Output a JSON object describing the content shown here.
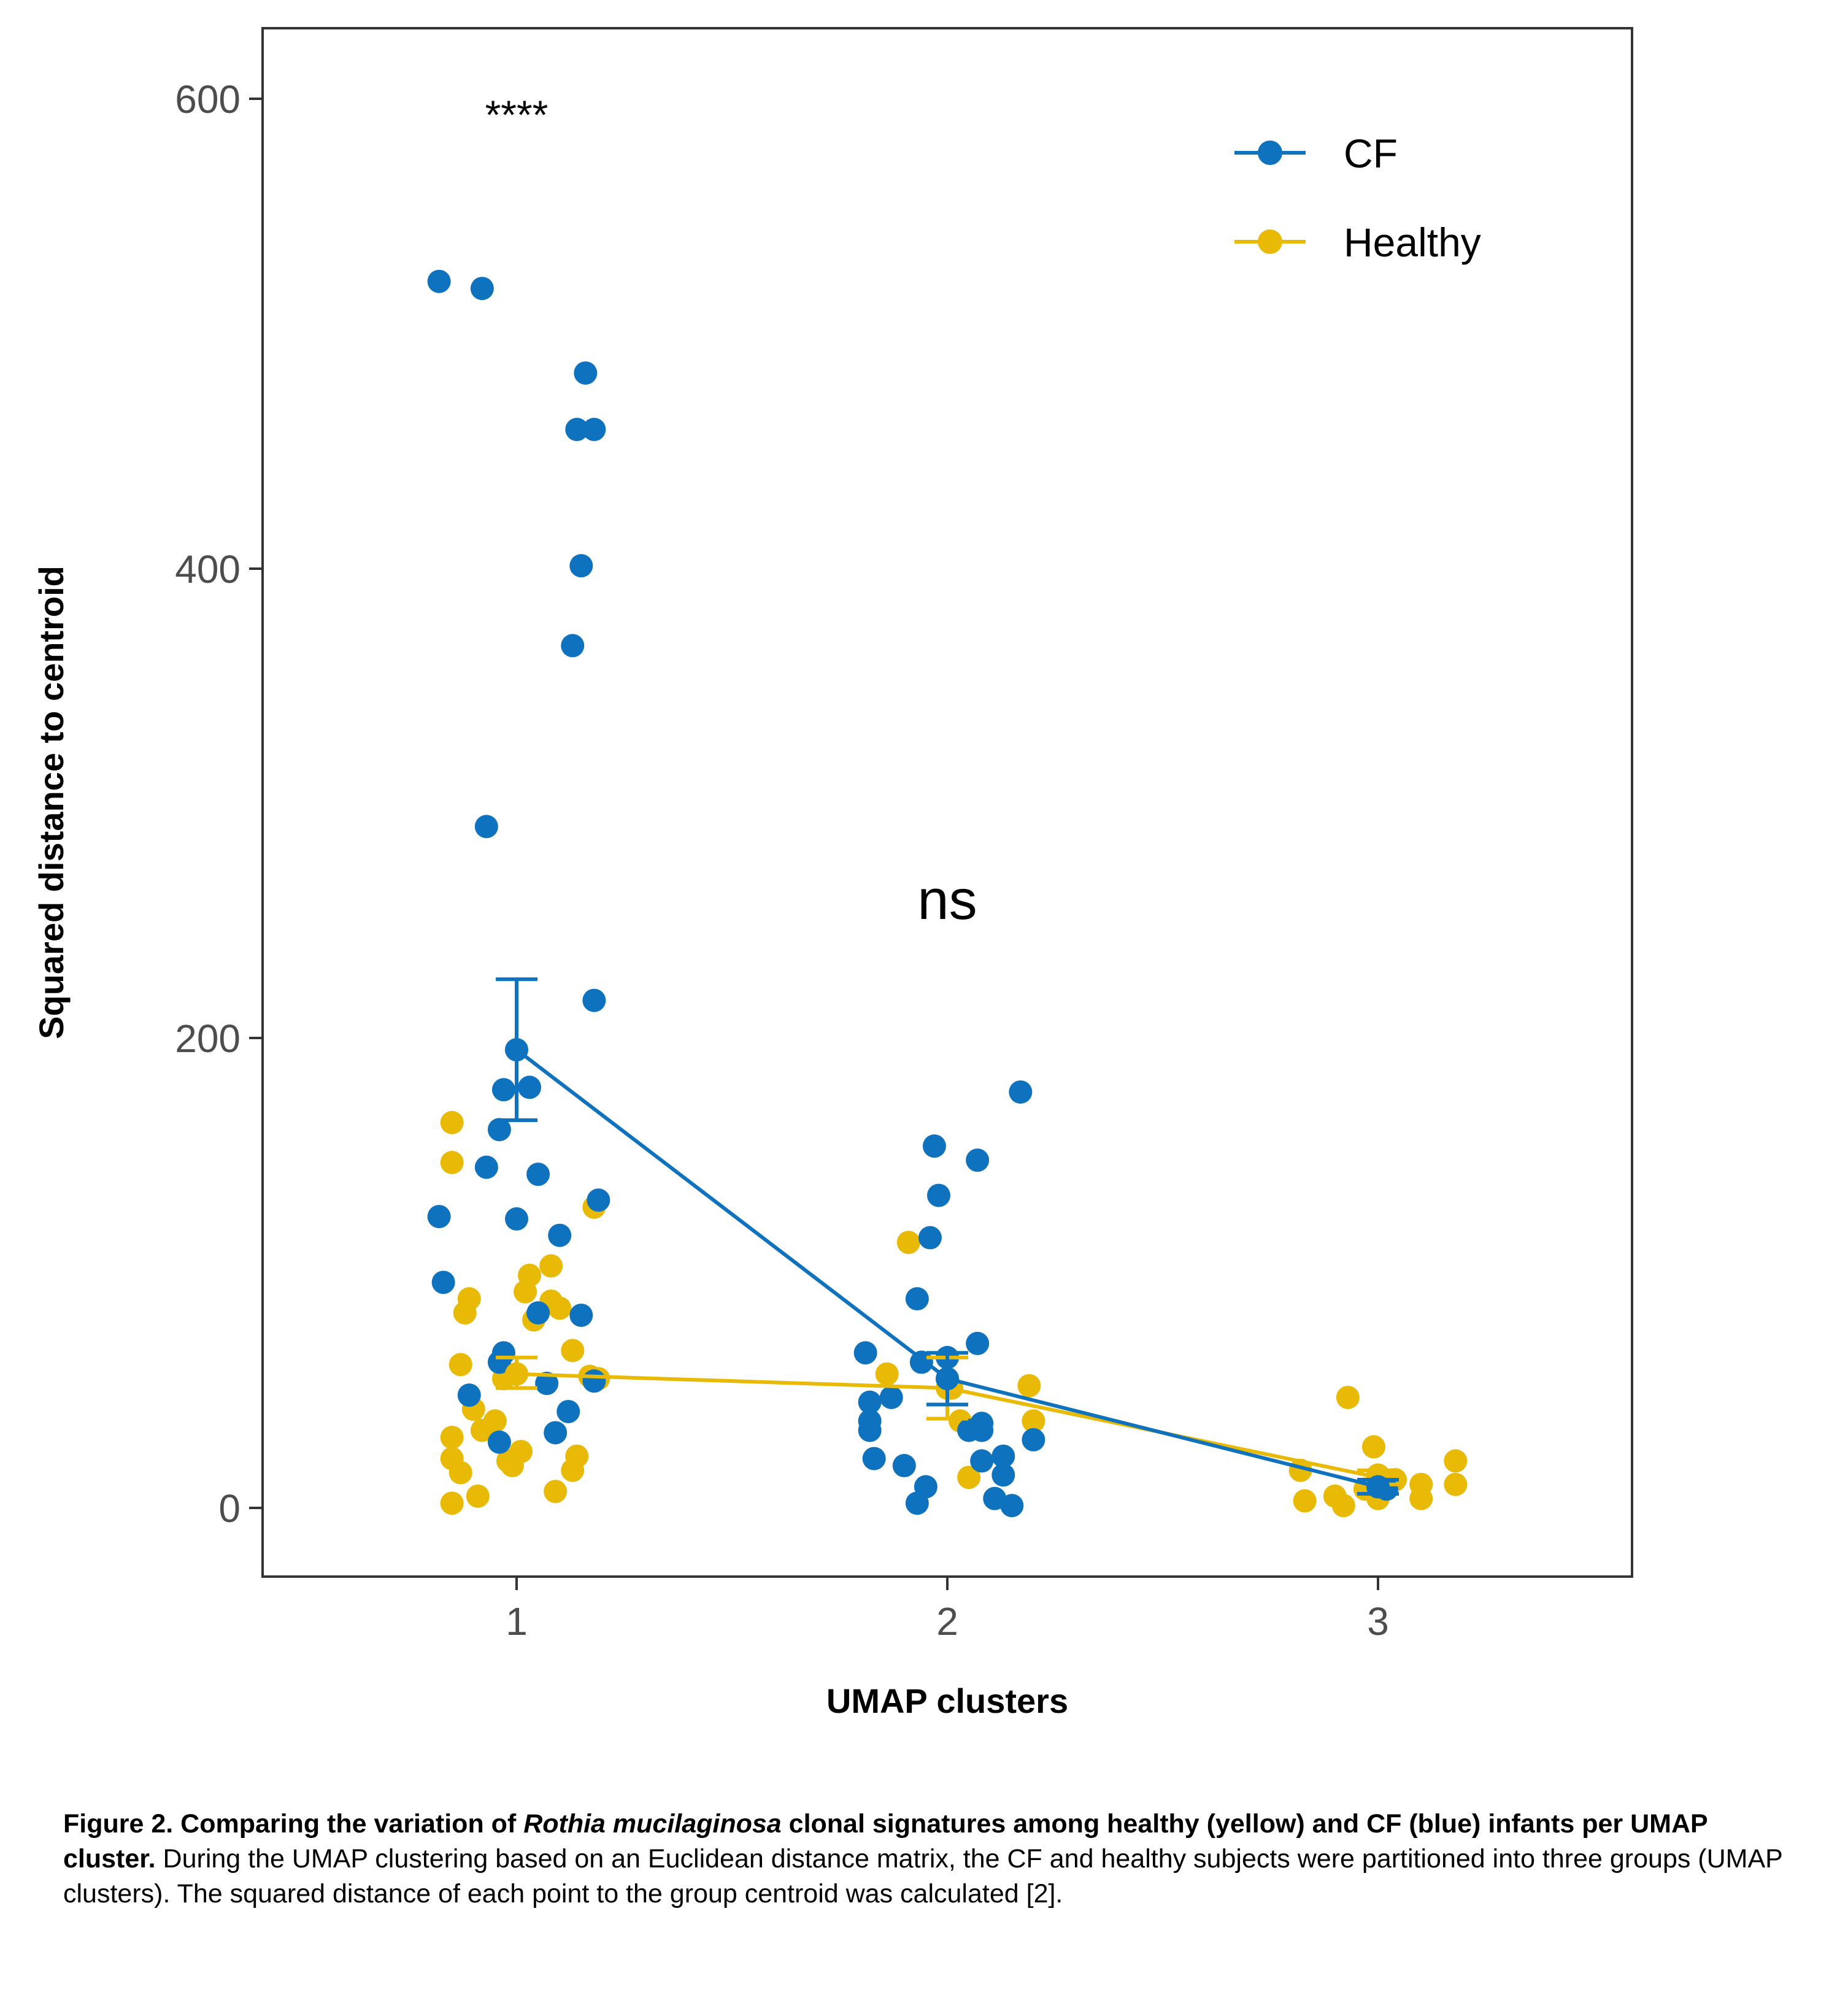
{
  "chart_data": {
    "type": "scatter",
    "title": "",
    "xlabel": "UMAP clusters",
    "ylabel": "Squared distance to centroid",
    "x_ticks": [
      "1",
      "2",
      "3"
    ],
    "y_ticks": [
      "0",
      "200",
      "400",
      "600"
    ],
    "xlim": [
      0.41,
      3.59
    ],
    "ylim": [
      -30,
      630
    ],
    "grid": false,
    "legend_position": "top-right",
    "annotations": [
      {
        "text": "****",
        "x": 1,
        "y": 592
      },
      {
        "text": "ns",
        "x": 2,
        "y": 258
      }
    ],
    "series": [
      {
        "name": "CF",
        "color": "#0e72be",
        "means": [
          {
            "x": 1,
            "y": 195,
            "lo": 165,
            "hi": 225
          },
          {
            "x": 2,
            "y": 55,
            "lo": 44,
            "hi": 66
          },
          {
            "x": 3,
            "y": 9,
            "lo": 6,
            "hi": 12
          }
        ],
        "points": [
          {
            "x": 0.82,
            "y": 522
          },
          {
            "x": 0.92,
            "y": 519
          },
          {
            "x": 1.16,
            "y": 483
          },
          {
            "x": 1.14,
            "y": 459
          },
          {
            "x": 1.18,
            "y": 459
          },
          {
            "x": 1.15,
            "y": 401
          },
          {
            "x": 1.13,
            "y": 367
          },
          {
            "x": 0.93,
            "y": 290
          },
          {
            "x": 1.18,
            "y": 216
          },
          {
            "x": 1.0,
            "y": 195
          },
          {
            "x": 0.97,
            "y": 178
          },
          {
            "x": 1.03,
            "y": 179
          },
          {
            "x": 0.96,
            "y": 161
          },
          {
            "x": 0.93,
            "y": 145
          },
          {
            "x": 1.05,
            "y": 142
          },
          {
            "x": 1.19,
            "y": 131
          },
          {
            "x": 0.82,
            "y": 124
          },
          {
            "x": 1.0,
            "y": 123
          },
          {
            "x": 1.1,
            "y": 116
          },
          {
            "x": 0.83,
            "y": 96
          },
          {
            "x": 1.05,
            "y": 83
          },
          {
            "x": 1.15,
            "y": 82
          },
          {
            "x": 0.97,
            "y": 66
          },
          {
            "x": 0.96,
            "y": 62
          },
          {
            "x": 1.07,
            "y": 53
          },
          {
            "x": 1.18,
            "y": 54
          },
          {
            "x": 0.89,
            "y": 48
          },
          {
            "x": 1.12,
            "y": 41
          },
          {
            "x": 1.09,
            "y": 32
          },
          {
            "x": 0.96,
            "y": 28
          },
          {
            "x": 2.17,
            "y": 177
          },
          {
            "x": 1.97,
            "y": 154
          },
          {
            "x": 2.07,
            "y": 148
          },
          {
            "x": 1.98,
            "y": 133
          },
          {
            "x": 1.96,
            "y": 115
          },
          {
            "x": 1.93,
            "y": 89
          },
          {
            "x": 2.07,
            "y": 70
          },
          {
            "x": 1.81,
            "y": 66
          },
          {
            "x": 1.94,
            "y": 62
          },
          {
            "x": 2.0,
            "y": 64
          },
          {
            "x": 2.0,
            "y": 55
          },
          {
            "x": 1.87,
            "y": 47
          },
          {
            "x": 1.82,
            "y": 45
          },
          {
            "x": 1.82,
            "y": 37
          },
          {
            "x": 2.08,
            "y": 36
          },
          {
            "x": 1.82,
            "y": 33
          },
          {
            "x": 2.05,
            "y": 33
          },
          {
            "x": 2.08,
            "y": 33
          },
          {
            "x": 2.2,
            "y": 29
          },
          {
            "x": 1.83,
            "y": 21
          },
          {
            "x": 2.13,
            "y": 22
          },
          {
            "x": 2.08,
            "y": 20
          },
          {
            "x": 1.9,
            "y": 18
          },
          {
            "x": 2.13,
            "y": 14
          },
          {
            "x": 1.95,
            "y": 9
          },
          {
            "x": 2.11,
            "y": 4
          },
          {
            "x": 1.93,
            "y": 2
          },
          {
            "x": 2.15,
            "y": 1
          },
          {
            "x": 3.0,
            "y": 9
          },
          {
            "x": 3.02,
            "y": 8
          }
        ]
      },
      {
        "name": "Healthy",
        "color": "#e8ba06",
        "means": [
          {
            "x": 1,
            "y": 57,
            "lo": 51,
            "hi": 64
          },
          {
            "x": 2,
            "y": 51,
            "lo": 38,
            "hi": 64
          },
          {
            "x": 3,
            "y": 13,
            "lo": 10,
            "hi": 16
          }
        ],
        "points": [
          {
            "x": 0.85,
            "y": 164
          },
          {
            "x": 0.85,
            "y": 147
          },
          {
            "x": 1.18,
            "y": 128
          },
          {
            "x": 1.08,
            "y": 103
          },
          {
            "x": 1.03,
            "y": 99
          },
          {
            "x": 1.02,
            "y": 92
          },
          {
            "x": 0.89,
            "y": 89
          },
          {
            "x": 1.08,
            "y": 88
          },
          {
            "x": 0.88,
            "y": 83
          },
          {
            "x": 1.1,
            "y": 85
          },
          {
            "x": 1.04,
            "y": 80
          },
          {
            "x": 1.13,
            "y": 67
          },
          {
            "x": 0.87,
            "y": 61
          },
          {
            "x": 1.0,
            "y": 57
          },
          {
            "x": 0.97,
            "y": 55
          },
          {
            "x": 1.17,
            "y": 56
          },
          {
            "x": 1.19,
            "y": 55
          },
          {
            "x": 0.9,
            "y": 42
          },
          {
            "x": 0.95,
            "y": 37
          },
          {
            "x": 0.92,
            "y": 33
          },
          {
            "x": 0.85,
            "y": 30
          },
          {
            "x": 1.01,
            "y": 24
          },
          {
            "x": 0.85,
            "y": 21
          },
          {
            "x": 0.98,
            "y": 20
          },
          {
            "x": 1.14,
            "y": 22
          },
          {
            "x": 0.99,
            "y": 18
          },
          {
            "x": 0.87,
            "y": 15
          },
          {
            "x": 1.13,
            "y": 16
          },
          {
            "x": 1.09,
            "y": 7
          },
          {
            "x": 0.91,
            "y": 5
          },
          {
            "x": 0.85,
            "y": 2
          },
          {
            "x": 1.91,
            "y": 113
          },
          {
            "x": 1.86,
            "y": 57
          },
          {
            "x": 2.19,
            "y": 52
          },
          {
            "x": 2.01,
            "y": 51
          },
          {
            "x": 2.03,
            "y": 37
          },
          {
            "x": 2.2,
            "y": 37
          },
          {
            "x": 2.05,
            "y": 13
          },
          {
            "x": 2.93,
            "y": 47
          },
          {
            "x": 2.99,
            "y": 26
          },
          {
            "x": 3.18,
            "y": 20
          },
          {
            "x": 2.82,
            "y": 16
          },
          {
            "x": 3.0,
            "y": 14
          },
          {
            "x": 3.04,
            "y": 12
          },
          {
            "x": 3.1,
            "y": 10
          },
          {
            "x": 3.18,
            "y": 10
          },
          {
            "x": 2.97,
            "y": 8
          },
          {
            "x": 2.9,
            "y": 5
          },
          {
            "x": 3.1,
            "y": 4
          },
          {
            "x": 3.0,
            "y": 4
          },
          {
            "x": 2.83,
            "y": 3
          },
          {
            "x": 2.92,
            "y": 1
          }
        ]
      }
    ]
  },
  "caption": {
    "bold_lead": "Figure 2. Comparing the variation of ",
    "bold_italic": "Rothia mucilaginosa",
    "bold_tail": " clonal signatures among healthy (yellow) and CF (blue) infants per UMAP cluster.",
    "body": " During the UMAP clustering based on an Euclidean distance matrix, the CF and healthy subjects were partitioned into three groups (UMAP clusters). The squared distance of each point to the group centroid was calculated [2]."
  }
}
